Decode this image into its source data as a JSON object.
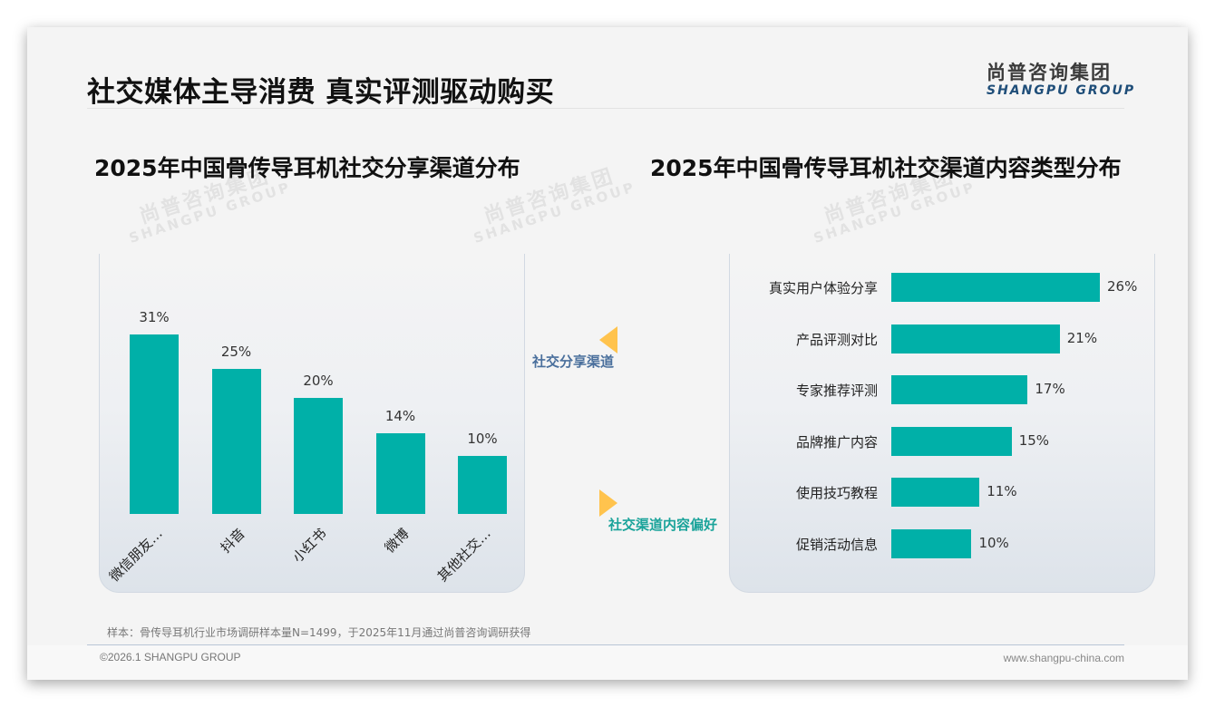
{
  "header": {
    "title": "社交媒体主导消费 真实评测驱动购买",
    "logo_cn": "尚普咨询集团",
    "logo_en": "SHANGPU GROUP"
  },
  "watermark": {
    "cn": "尚普咨询集团",
    "en": "SHANGPU GROUP"
  },
  "connectors": {
    "share_label": "社交分享渠道",
    "pref_label": "社交渠道内容偏好",
    "arrow_color": "#ffc34d"
  },
  "footer": {
    "note": "样本：骨传导耳机行业市场调研样本量N=1499，于2025年11月通过尚普咨询调研获得",
    "copyright": "©2026.1 SHANGPU GROUP",
    "website": "www.shangpu-china.com"
  },
  "colors": {
    "bar": "#00b0a8",
    "accent_blue": "#1f4e79"
  },
  "chart_data": [
    {
      "type": "bar",
      "orientation": "vertical",
      "title": "2025年中国骨传导耳机社交分享渠道分布",
      "categories": [
        "微信朋友…",
        "抖音",
        "小红书",
        "微博",
        "其他社交…"
      ],
      "values": [
        31,
        25,
        20,
        14,
        10
      ],
      "value_labels": [
        "31%",
        "25%",
        "20%",
        "14%",
        "10%"
      ],
      "xlabel": "",
      "ylabel": "",
      "ylim": [
        0,
        35
      ],
      "grid": false,
      "legend": null,
      "unit": "%"
    },
    {
      "type": "bar",
      "orientation": "horizontal",
      "title": "2025年中国骨传导耳机社交渠道内容类型分布",
      "categories": [
        "真实用户体验分享",
        "产品评测对比",
        "专家推荐评测",
        "品牌推广内容",
        "使用技巧教程",
        "促销活动信息"
      ],
      "values": [
        26,
        21,
        17,
        15,
        11,
        10
      ],
      "value_labels": [
        "26%",
        "21%",
        "17%",
        "15%",
        "11%",
        "10%"
      ],
      "xlabel": "",
      "ylabel": "",
      "xlim": [
        0,
        30
      ],
      "grid": false,
      "legend": null,
      "unit": "%"
    }
  ]
}
